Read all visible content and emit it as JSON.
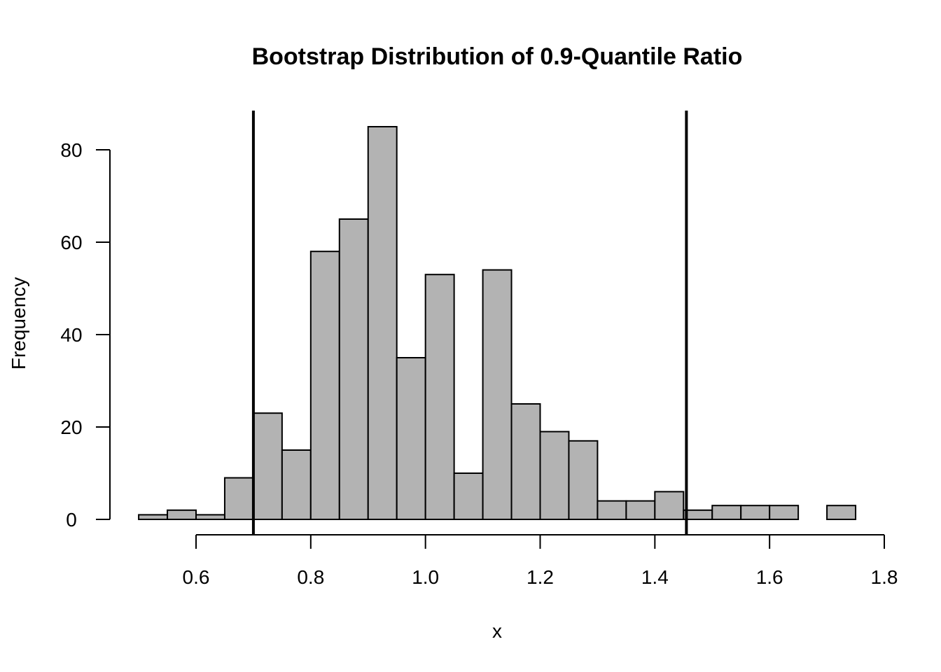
{
  "chart_data": {
    "type": "bar",
    "title": "Bootstrap Distribution of 0.9-Quantile Ratio",
    "xlabel": "x",
    "ylabel": "Frequency",
    "bin_width": 0.05,
    "bins": [
      {
        "start": 0.5,
        "end": 0.55,
        "count": 1
      },
      {
        "start": 0.55,
        "end": 0.6,
        "count": 2
      },
      {
        "start": 0.6,
        "end": 0.65,
        "count": 1
      },
      {
        "start": 0.65,
        "end": 0.7,
        "count": 9
      },
      {
        "start": 0.7,
        "end": 0.75,
        "count": 23
      },
      {
        "start": 0.75,
        "end": 0.8,
        "count": 15
      },
      {
        "start": 0.8,
        "end": 0.85,
        "count": 58
      },
      {
        "start": 0.85,
        "end": 0.9,
        "count": 65
      },
      {
        "start": 0.9,
        "end": 0.95,
        "count": 85
      },
      {
        "start": 0.95,
        "end": 1.0,
        "count": 35
      },
      {
        "start": 1.0,
        "end": 1.05,
        "count": 53
      },
      {
        "start": 1.05,
        "end": 1.1,
        "count": 10
      },
      {
        "start": 1.1,
        "end": 1.15,
        "count": 54
      },
      {
        "start": 1.15,
        "end": 1.2,
        "count": 25
      },
      {
        "start": 1.2,
        "end": 1.25,
        "count": 19
      },
      {
        "start": 1.25,
        "end": 1.3,
        "count": 17
      },
      {
        "start": 1.3,
        "end": 1.35,
        "count": 4
      },
      {
        "start": 1.35,
        "end": 1.4,
        "count": 4
      },
      {
        "start": 1.4,
        "end": 1.45,
        "count": 6
      },
      {
        "start": 1.45,
        "end": 1.5,
        "count": 2
      },
      {
        "start": 1.5,
        "end": 1.55,
        "count": 3
      },
      {
        "start": 1.55,
        "end": 1.6,
        "count": 3
      },
      {
        "start": 1.6,
        "end": 1.65,
        "count": 3
      },
      {
        "start": 1.65,
        "end": 1.7,
        "count": 0
      },
      {
        "start": 1.7,
        "end": 1.75,
        "count": 3
      }
    ],
    "xlim": [
      0.6,
      1.8
    ],
    "ylim": [
      0,
      80
    ],
    "x_ticks": [
      "0.6",
      "0.8",
      "1.0",
      "1.2",
      "1.4",
      "1.6",
      "1.8"
    ],
    "y_ticks": [
      "0",
      "20",
      "40",
      "60",
      "80"
    ],
    "vlines": [
      0.7,
      1.455
    ],
    "bar_color": "#b3b3b3",
    "line_color": "#000000",
    "grid": false,
    "legend": "none"
  }
}
